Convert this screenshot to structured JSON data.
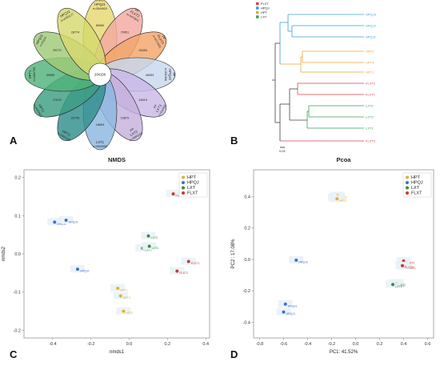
{
  "panels": {
    "a": {
      "letter": "A"
    },
    "b": {
      "letter": "B"
    },
    "c": {
      "letter": "C"
    },
    "d": {
      "letter": "D"
    }
  },
  "flower": {
    "core_value": "204158",
    "petals": [
      {
        "name": "HPQJ1",
        "id": "PPS",
        "sub": "n=3544920",
        "unique": "89080",
        "color": "#e8d870",
        "angle": 0
      },
      {
        "name": "FLXT2",
        "id": "PP",
        "sub": "n=4473811",
        "unique": "70951",
        "color": "#f3a9a0",
        "angle": 30
      },
      {
        "name": "FLXT3",
        "id": "PP",
        "sub": "n=4171921",
        "unique": "28454",
        "color": "#f3a56a",
        "angle": 60
      },
      {
        "name": "HPQJ3",
        "id": "PP",
        "sub": "n=31130A",
        "unique": "45053",
        "color": "#c8d8ee",
        "angle": 90
      },
      {
        "name": "LXT3",
        "id": "PP",
        "sub": "n=31150P",
        "unique": "18419",
        "color": "#c9b8e6",
        "angle": 120
      },
      {
        "name": "LXT2",
        "id": "PP",
        "sub": "n=3583186",
        "unique": "19879",
        "color": "#c5b1dc",
        "angle": 150
      },
      {
        "name": "LXT1",
        "id": "",
        "sub": "n=3994050",
        "unique": "18893",
        "color": "#8bb7e0",
        "angle": 180
      },
      {
        "name": "HPT3",
        "id": "",
        "sub": "n=3937165",
        "unique": "22743",
        "color": "#2f8f8c",
        "angle": 210
      },
      {
        "name": "HPT2",
        "id": "",
        "sub": "n=4443603",
        "unique": "17878",
        "color": "#3d9e82",
        "angle": 240
      },
      {
        "name": "HPT1",
        "id": "",
        "sub": "n=4281795",
        "unique": "39955",
        "color": "#4fb27a",
        "angle": 270
      },
      {
        "name": "HPQJ2",
        "id": "",
        "sub": "n=31110",
        "unique": "29272",
        "color": "#9fca78",
        "angle": 300
      },
      {
        "name": "HPQJ2",
        "id": "",
        "sub": "n=4763177",
        "unique": "28774",
        "color": "#d6d96e",
        "angle": 330
      }
    ]
  },
  "dendrogram": {
    "legend": [
      {
        "label": "FLXT",
        "color": "#d9434f"
      },
      {
        "label": "HPQJ",
        "color": "#3aa0d6"
      },
      {
        "label": "HPT",
        "color": "#f0a23a"
      },
      {
        "label": "LXT",
        "color": "#3aa05a"
      }
    ],
    "leaves": [
      {
        "label": "HPQJ3",
        "color": "#3aa0d6"
      },
      {
        "label": "HPQJ2",
        "color": "#3aa0d6"
      },
      {
        "label": "HPQJ1",
        "color": "#3aa0d6"
      },
      {
        "label": "HPT2",
        "color": "#f0a23a"
      },
      {
        "label": "HPT3",
        "color": "#f0a23a"
      },
      {
        "label": "HPT1",
        "color": "#f0a23a"
      },
      {
        "label": "FLXT2",
        "color": "#d9434f"
      },
      {
        "label": "FLXT1",
        "color": "#d9434f"
      },
      {
        "label": "LXT2",
        "color": "#3aa05a"
      },
      {
        "label": "LXT3",
        "color": "#3aa05a"
      },
      {
        "label": "LXT1",
        "color": "#3aa05a"
      },
      {
        "label": "FLXT3",
        "color": "#d9434f"
      }
    ],
    "scale_label": "0.01"
  },
  "chart_data": [
    {
      "type": "scatter",
      "title": "NMDS",
      "xlabel": "nmds1",
      "ylabel": "nmds2",
      "xlim": [
        -0.55,
        0.42
      ],
      "ylim": [
        -0.22,
        0.22
      ],
      "xticks": [
        -0.4,
        -0.2,
        0.0,
        0.2,
        0.4
      ],
      "yticks": [
        -0.2,
        -0.1,
        0.0,
        0.1,
        0.2
      ],
      "xtick_labels": [
        "-0.4",
        "-0.2",
        "0.0",
        "0.2",
        "0.4"
      ],
      "ytick_labels": [
        "-0.2",
        "-0.1",
        "0.0",
        "0.1",
        "0.2"
      ],
      "legend_position": "top-right",
      "series": [
        {
          "name": "HPT",
          "color": "#e2b32a",
          "points": [
            {
              "label": "HPT1",
              "x": -0.06,
              "y": -0.09
            },
            {
              "label": "HPT2",
              "x": -0.03,
              "y": -0.15
            },
            {
              "label": "HPT3",
              "x": -0.045,
              "y": -0.11
            }
          ]
        },
        {
          "name": "HPQJ",
          "color": "#3a6fd8",
          "points": [
            {
              "label": "HPQJ1",
              "x": -0.39,
              "y": 0.083
            },
            {
              "label": "HPQJ2",
              "x": -0.27,
              "y": -0.04
            },
            {
              "label": "HPQJ3",
              "x": -0.33,
              "y": 0.088
            }
          ]
        },
        {
          "name": "LXT",
          "color": "#3f8c3c",
          "points": [
            {
              "label": "LXT1",
              "x": 0.07,
              "y": 0.015
            },
            {
              "label": "LXT2",
              "x": 0.105,
              "y": 0.02
            },
            {
              "label": "LXT3",
              "x": 0.1,
              "y": 0.047
            }
          ]
        },
        {
          "name": "FLXT",
          "color": "#c93a2c",
          "points": [
            {
              "label": "FLXT1",
              "x": 0.31,
              "y": -0.02
            },
            {
              "label": "FLXT2",
              "x": 0.25,
              "y": -0.045
            },
            {
              "label": "FLXT3",
              "x": 0.23,
              "y": 0.157
            }
          ]
        }
      ]
    },
    {
      "type": "scatter",
      "title": "Pcoa",
      "xlabel": "PC1: 41.52%",
      "ylabel": "PC2 : 17.08%",
      "xlim": [
        -0.85,
        0.65
      ],
      "ylim": [
        -0.5,
        0.57
      ],
      "xticks": [
        -0.8,
        -0.6,
        -0.4,
        -0.2,
        0.0,
        0.2,
        0.4,
        0.6
      ],
      "yticks": [
        -0.4,
        -0.2,
        0.0,
        0.2,
        0.4
      ],
      "xtick_labels": [
        "-0.8",
        "-0.6",
        "-0.4",
        "-0.2",
        "0.0",
        "0.2",
        "0.4",
        "0.6"
      ],
      "ytick_labels": [
        "-0.4",
        "-0.2",
        "0.0",
        "0.2",
        "0.4"
      ],
      "legend_position": "top-right",
      "series": [
        {
          "name": "HPT",
          "color": "#e2b32a",
          "points": [
            {
              "label": "HPT1",
              "x": -0.17,
              "y": 0.395
            },
            {
              "label": "HPT2",
              "x": -0.15,
              "y": 0.405
            },
            {
              "label": "HPT3",
              "x": -0.155,
              "y": 0.385
            }
          ]
        },
        {
          "name": "HPQJ",
          "color": "#3a6fd8",
          "points": [
            {
              "label": "HPQJ1",
              "x": -0.6,
              "y": -0.335
            },
            {
              "label": "HPQJ2",
              "x": -0.495,
              "y": -0.005
            },
            {
              "label": "HPQJ3",
              "x": -0.585,
              "y": -0.285
            }
          ]
        },
        {
          "name": "LXT",
          "color": "#3f8c3c",
          "points": [
            {
              "label": "LXT1",
              "x": 0.33,
              "y": -0.155
            },
            {
              "label": "LXT2",
              "x": 0.34,
              "y": -0.15
            },
            {
              "label": "LXT3",
              "x": 0.31,
              "y": -0.16
            }
          ]
        },
        {
          "name": "FLXT",
          "color": "#c93a2c",
          "points": [
            {
              "label": "FLXT1",
              "x": 0.41,
              "y": -0.045
            },
            {
              "label": "FLXT2",
              "x": 0.4,
              "y": -0.01
            },
            {
              "label": "FLXT3",
              "x": 0.39,
              "y": -0.04
            }
          ]
        }
      ]
    }
  ]
}
